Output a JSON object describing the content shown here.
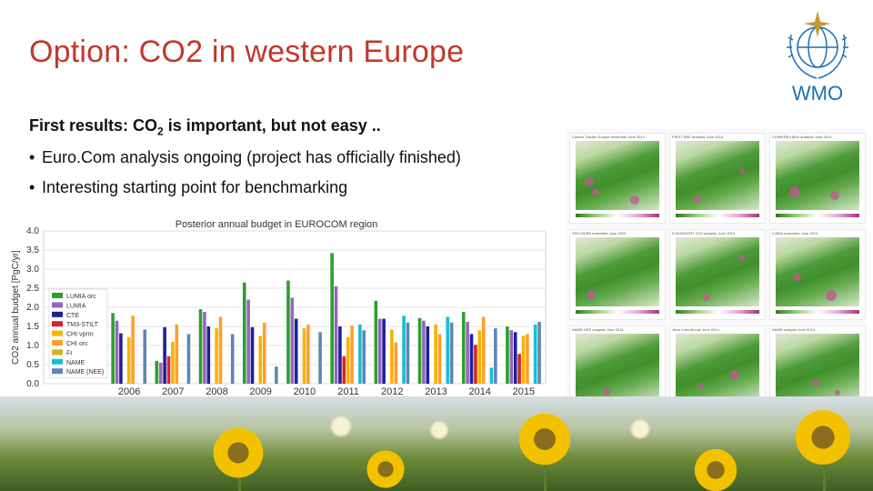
{
  "slide": {
    "title": "Option: CO2 in western Europe",
    "logo_text": "WMO",
    "intro_prefix": "First results: CO",
    "intro_sub": "2",
    "intro_suffix": " is important, but not easy ..",
    "bullets": [
      {
        "text": "Euro.Com analysis ongoing (project has officially finished)"
      },
      {
        "text": "Interesting starting point for benchmarking"
      }
    ]
  },
  "chart_data": {
    "type": "bar",
    "title": "Posterior annual budget in EUROCOM region",
    "ylabel": "CO2 annual budget [PgC/yr]",
    "ylim": [
      0,
      4.0
    ],
    "yticks": [
      "0.0",
      "0.5",
      "1.0",
      "1.5",
      "2.0",
      "2.5",
      "3.0",
      "3.5",
      "4.0"
    ],
    "categories": [
      "2006",
      "2007",
      "2008",
      "2009",
      "2010",
      "2011",
      "2012",
      "2013",
      "2014",
      "2015"
    ],
    "grid": true,
    "legend_position": "left",
    "series": [
      {
        "name": "LUMIA orc",
        "color": "#2ca02c",
        "values": [
          1.85,
          0.6,
          1.95,
          2.65,
          2.7,
          3.42,
          2.17,
          1.72,
          1.88,
          1.5
        ]
      },
      {
        "name": "LUMIA",
        "color": "#9467bd",
        "values": [
          1.65,
          0.55,
          1.88,
          2.2,
          2.25,
          2.55,
          1.7,
          1.65,
          1.62,
          1.4
        ]
      },
      {
        "name": "CTE",
        "color": "#1f1f99",
        "values": [
          1.32,
          1.48,
          1.5,
          1.48,
          1.7,
          1.5,
          1.7,
          1.5,
          1.3,
          1.35
        ]
      },
      {
        "name": "TM3-STILT",
        "color": "#d62728",
        "values": [
          0,
          0.72,
          0,
          0,
          0,
          0.72,
          0,
          0,
          1.02,
          0.78
        ]
      },
      {
        "name": "CHI vprm",
        "color": "#f5b400",
        "values": [
          1.22,
          1.1,
          1.45,
          1.25,
          1.45,
          1.22,
          1.42,
          1.55,
          1.4,
          1.25
        ]
      },
      {
        "name": "CHI orc",
        "color": "#ff9f2a",
        "values": [
          1.78,
          1.55,
          1.75,
          1.6,
          1.55,
          1.52,
          1.08,
          1.3,
          1.75,
          1.3
        ]
      },
      {
        "name": "FI",
        "color": "#d4b020",
        "values": [
          0,
          0,
          0,
          0,
          0,
          0,
          0,
          0,
          0,
          0
        ]
      },
      {
        "name": "NAME",
        "color": "#17becf",
        "values": [
          0,
          0,
          0,
          0,
          0,
          1.55,
          1.78,
          1.75,
          0.42,
          1.55
        ]
      },
      {
        "name": "NAME (NEE)",
        "color": "#5f86b3",
        "values": [
          1.42,
          1.3,
          1.3,
          0.45,
          1.35,
          1.4,
          1.6,
          1.6,
          1.45,
          1.62
        ]
      }
    ]
  },
  "maps": {
    "panels": [
      {
        "title": "Carbon Tracker Europe ensemble  June 2014"
      },
      {
        "title": "FIRST NEE analysis  June 2014"
      },
      {
        "title": "CHIMERE/LMDz analysis  June 2014"
      },
      {
        "title": "ORCHIDEE ensemble  June 2014"
      },
      {
        "title": "FLEXINVERT CO2 analysis  June 2014"
      },
      {
        "title": "LUMIA ensemble  June 2014"
      },
      {
        "title": "NAME-NEE analysis  June 2014"
      },
      {
        "title": "Jena CarboScope  June 2014"
      },
      {
        "title": "NAME analysis  June 2014"
      }
    ]
  }
}
